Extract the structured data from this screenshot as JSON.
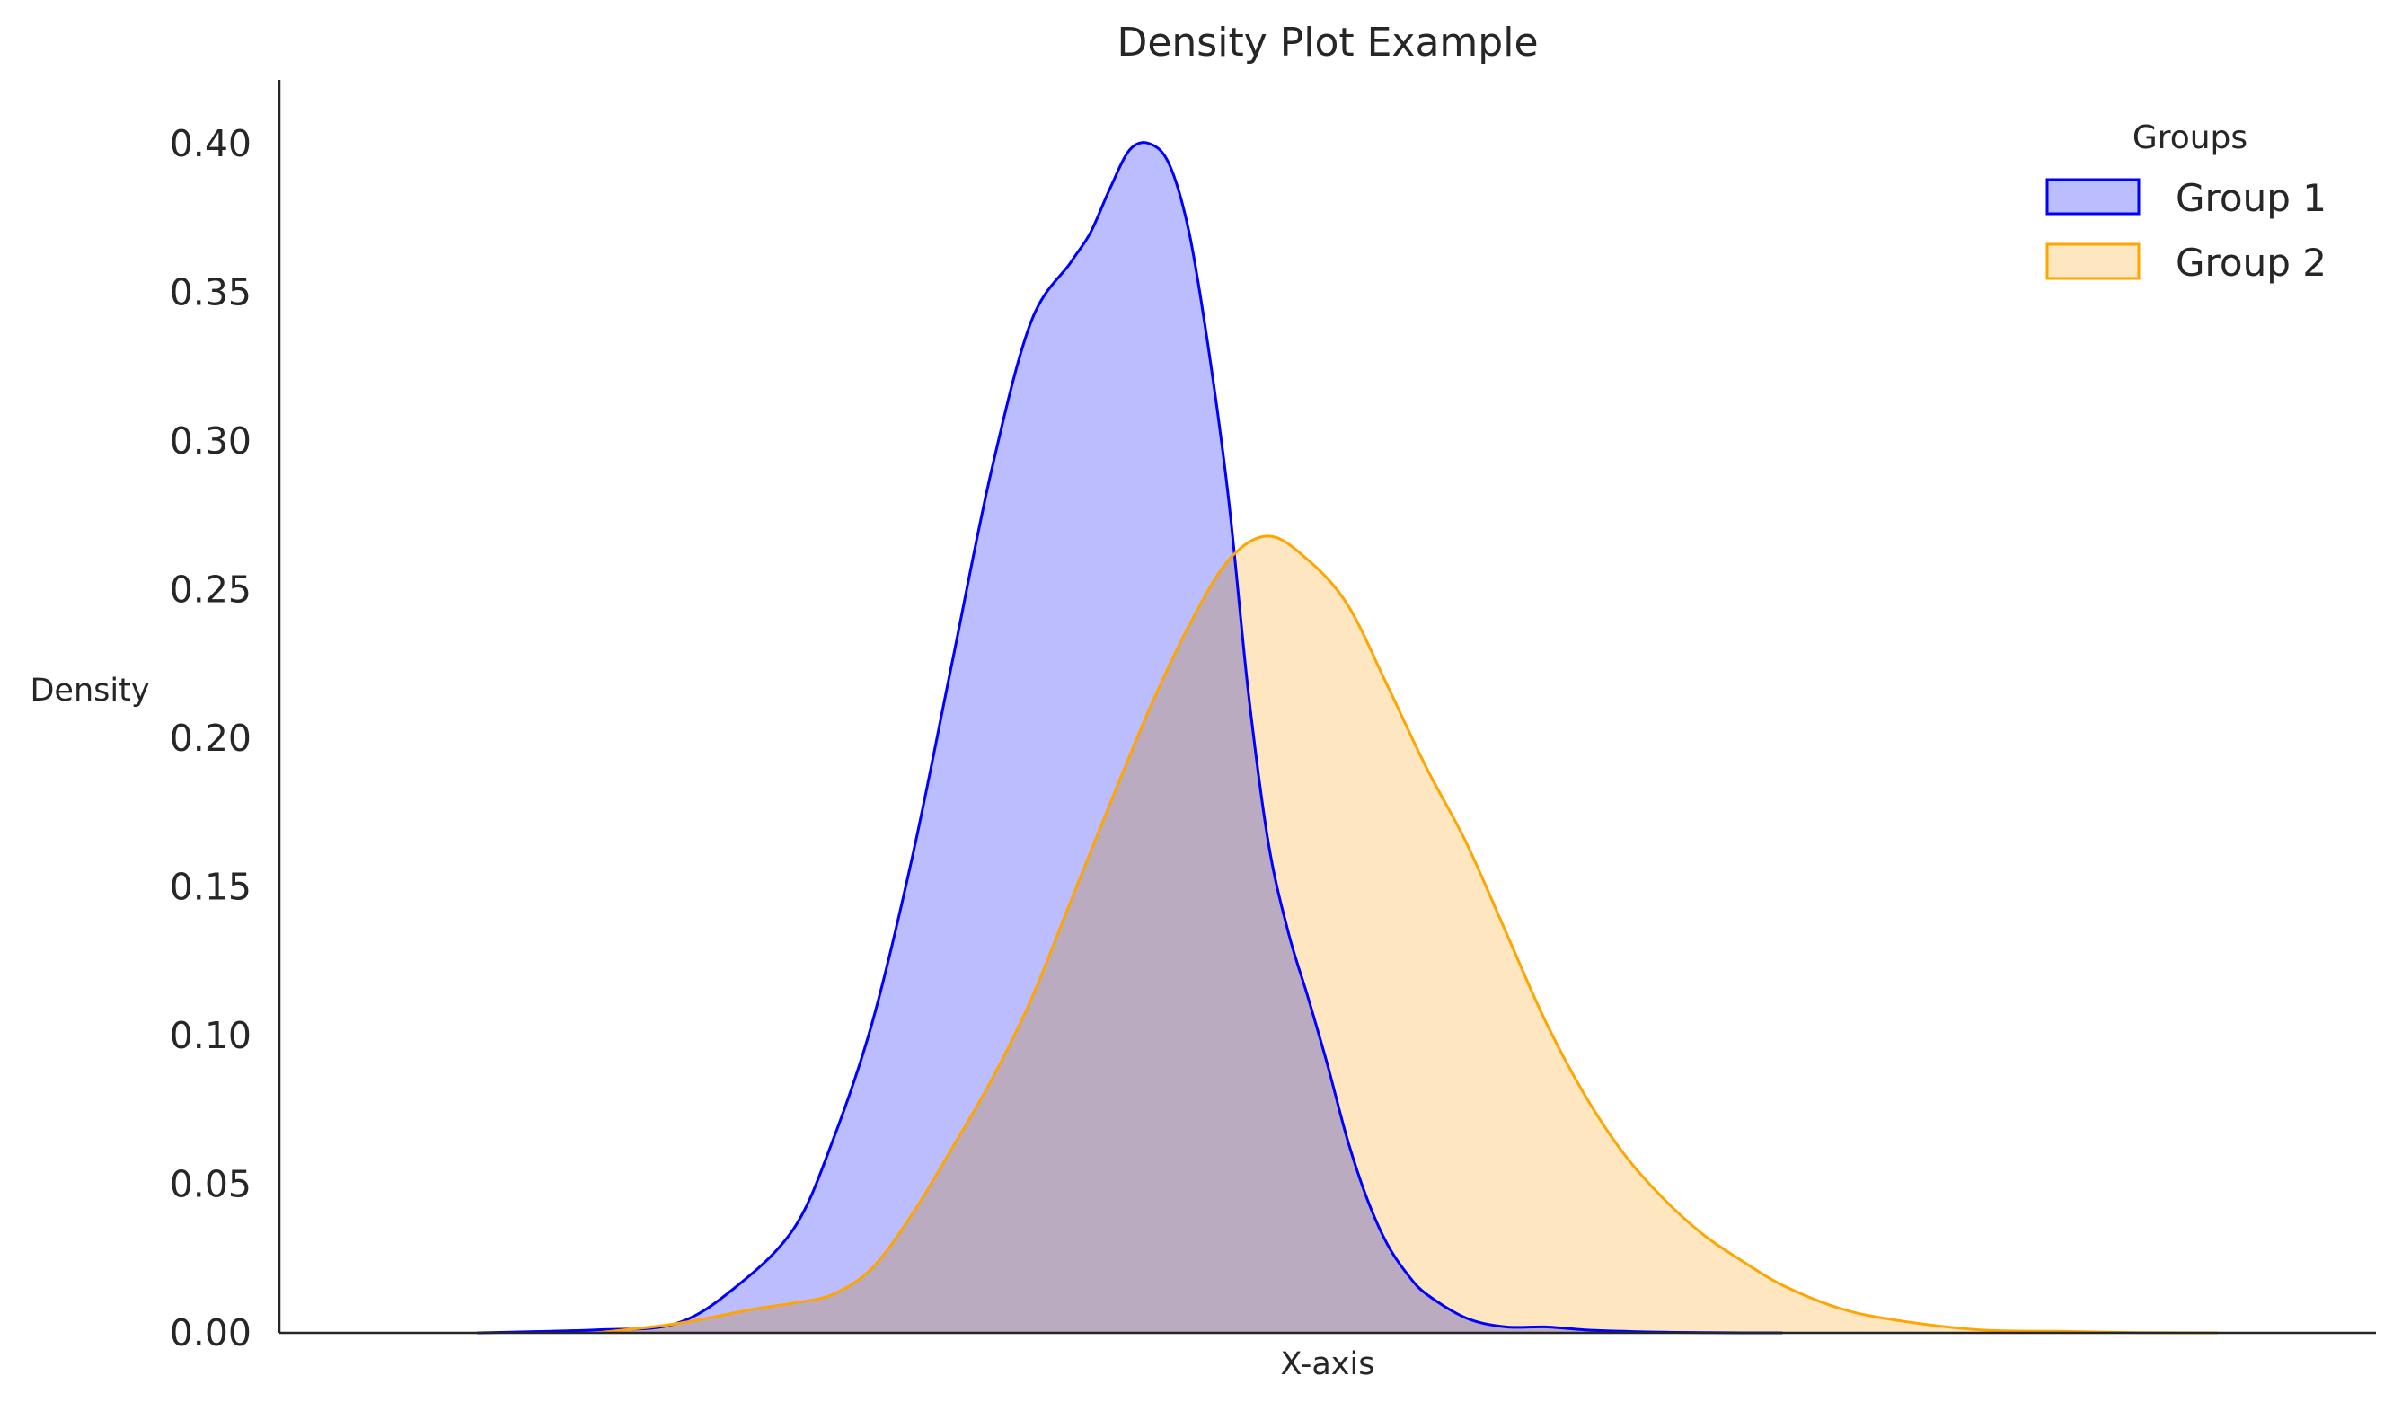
{
  "chart_data": {
    "type": "area",
    "title": "Density Plot Example",
    "xlabel": "X-axis",
    "ylabel": "Density",
    "ylim": [
      0,
      0.42
    ],
    "xlim": [
      -4.6,
      6.0
    ],
    "x_ticks_visible": false,
    "y_ticks": [
      "0.00",
      "0.05",
      "0.10",
      "0.15",
      "0.20",
      "0.25",
      "0.30",
      "0.35",
      "0.40"
    ],
    "grid": false,
    "legend": {
      "title": "Groups",
      "placement": "top-right"
    },
    "series": [
      {
        "name": "Group 1",
        "color": "#0000ff",
        "fill": "#bcbdff",
        "x": [
          -3.6,
          -3.0,
          -2.6,
          -2.3,
          -2.0,
          -1.8,
          -1.6,
          -1.4,
          -1.2,
          -1.0,
          -0.8,
          -0.6,
          -0.5,
          -0.4,
          -0.3,
          -0.2,
          -0.1,
          0.0,
          0.1,
          0.2,
          0.3,
          0.4,
          0.5,
          0.6,
          0.7,
          0.8,
          0.9,
          1.0,
          1.1,
          1.2,
          1.4,
          1.6,
          1.8,
          2.0,
          2.2,
          2.4,
          2.6,
          2.8,
          3.0
        ],
        "y": [
          0.0,
          0.001,
          0.003,
          0.015,
          0.035,
          0.065,
          0.105,
          0.16,
          0.225,
          0.29,
          0.34,
          0.36,
          0.37,
          0.385,
          0.398,
          0.4,
          0.393,
          0.37,
          0.33,
          0.28,
          0.215,
          0.165,
          0.135,
          0.113,
          0.09,
          0.065,
          0.045,
          0.03,
          0.02,
          0.013,
          0.005,
          0.002,
          0.002,
          0.001,
          0.0005,
          0.0002,
          0.0001,
          0.0,
          0.0
        ]
      },
      {
        "name": "Group 2",
        "color": "#ffa500",
        "fill": "#fee7c0",
        "x": [
          -3.0,
          -2.6,
          -2.2,
          -2.0,
          -1.8,
          -1.6,
          -1.4,
          -1.2,
          -1.0,
          -0.8,
          -0.6,
          -0.4,
          -0.2,
          0.0,
          0.2,
          0.4,
          0.6,
          0.8,
          1.0,
          1.2,
          1.4,
          1.6,
          1.8,
          2.0,
          2.2,
          2.4,
          2.6,
          2.8,
          3.0,
          3.3,
          3.6,
          4.0,
          4.4,
          4.8,
          5.2
        ],
        "y": [
          0.0,
          0.003,
          0.008,
          0.01,
          0.013,
          0.022,
          0.04,
          0.062,
          0.085,
          0.112,
          0.145,
          0.178,
          0.21,
          0.238,
          0.26,
          0.268,
          0.26,
          0.245,
          0.218,
          0.19,
          0.165,
          0.135,
          0.105,
          0.08,
          0.06,
          0.045,
          0.033,
          0.024,
          0.016,
          0.008,
          0.004,
          0.001,
          0.0005,
          0.0001,
          0.0
        ]
      }
    ]
  }
}
